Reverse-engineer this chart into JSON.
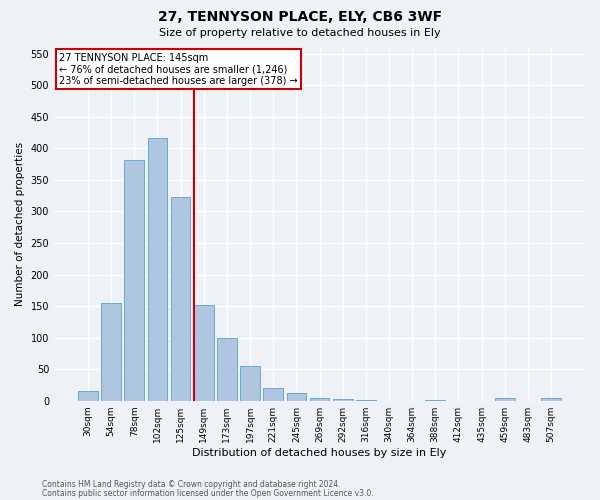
{
  "title1": "27, TENNYSON PLACE, ELY, CB6 3WF",
  "title2": "Size of property relative to detached houses in Ely",
  "xlabel": "Distribution of detached houses by size in Ely",
  "ylabel": "Number of detached properties",
  "footnote1": "Contains HM Land Registry data © Crown copyright and database right 2024.",
  "footnote2": "Contains public sector information licensed under the Open Government Licence v3.0.",
  "bar_labels": [
    "30sqm",
    "54sqm",
    "78sqm",
    "102sqm",
    "125sqm",
    "149sqm",
    "173sqm",
    "197sqm",
    "221sqm",
    "245sqm",
    "269sqm",
    "292sqm",
    "316sqm",
    "340sqm",
    "364sqm",
    "388sqm",
    "412sqm",
    "435sqm",
    "459sqm",
    "483sqm",
    "507sqm"
  ],
  "bar_values": [
    15,
    155,
    382,
    417,
    323,
    152,
    100,
    55,
    20,
    12,
    5,
    2,
    1,
    0,
    0,
    1,
    0,
    0,
    5,
    0,
    5
  ],
  "bar_color": "#aec6e0",
  "bar_edge_color": "#6aaad4",
  "annotation_text1": "27 TENNYSON PLACE: 145sqm",
  "annotation_text2": "← 76% of detached houses are smaller (1,246)",
  "annotation_text3": "23% of semi-detached houses are larger (378) →",
  "annotation_box_color": "#ffffff",
  "annotation_box_edge": "#cc0000",
  "line_color": "#cc0000",
  "ylim": [
    0,
    560
  ],
  "yticks": [
    0,
    50,
    100,
    150,
    200,
    250,
    300,
    350,
    400,
    450,
    500,
    550
  ],
  "background_color": "#eef2f7",
  "grid_color": "#ffffff",
  "line_x_index": 4.58
}
